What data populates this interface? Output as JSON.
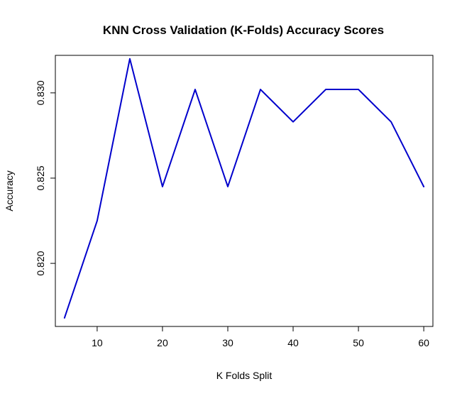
{
  "chart_data": {
    "type": "line",
    "title": "KNN Cross Validation (K-Folds) Accuracy Scores",
    "xlabel": "K Folds Split",
    "ylabel": "Accuracy",
    "x": [
      5,
      10,
      15,
      20,
      25,
      30,
      35,
      40,
      45,
      50,
      55,
      60
    ],
    "series": [
      {
        "values": [
          0.8168,
          0.8225,
          0.832,
          0.8245,
          0.8302,
          0.8245,
          0.8302,
          0.8283,
          0.8302,
          0.8302,
          0.8283,
          0.8245
        ],
        "color": "#0000cc"
      }
    ],
    "x_ticks": [
      "10",
      "20",
      "30",
      "40",
      "50",
      "60"
    ],
    "y_ticks": [
      "0.820",
      "0.825",
      "0.830"
    ],
    "xlim": [
      3.6,
      61.4
    ],
    "ylim": [
      0.8163,
      0.8322
    ],
    "grid": false,
    "legend": "none"
  }
}
